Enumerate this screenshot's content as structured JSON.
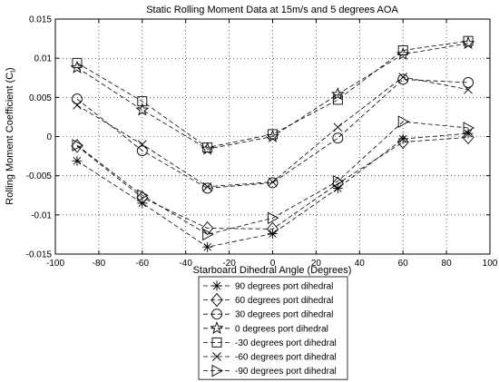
{
  "chart_data": {
    "type": "line",
    "title": "Static Rolling Moment Data at 15m/s and 5 degrees AOA",
    "xlabel": "Starboard Dihedral Angle (Degrees)",
    "ylabel": "Rolling Moment Coefficient (C",
    "ylabel_sub": "l",
    "ylabel_close": ")",
    "xlim": [
      -100,
      100
    ],
    "ylim": [
      -0.015,
      0.015
    ],
    "x_ticks": [
      -100,
      -80,
      -60,
      -40,
      -20,
      0,
      20,
      40,
      60,
      80,
      100
    ],
    "y_ticks": [
      -0.015,
      -0.01,
      -0.005,
      0,
      0.005,
      0.01,
      0.015
    ],
    "x_tick_labels": [
      "-100",
      "-80",
      "-60",
      "-40",
      "-20",
      "0",
      "20",
      "40",
      "60",
      "80",
      "100"
    ],
    "y_tick_labels": [
      "-0.015",
      "-0.01",
      "-0.005",
      "0",
      "0.005",
      "0.01",
      "0.015"
    ],
    "grid": true,
    "legend_position": "bottom-center",
    "x": [
      -90,
      -60,
      -30,
      0,
      30,
      60,
      90
    ],
    "series": [
      {
        "name": "90 degrees port dihedral",
        "marker": "asterisk",
        "values": [
          -0.0031,
          -0.0085,
          -0.0141,
          -0.0124,
          -0.0066,
          -0.0003,
          0.0004
        ]
      },
      {
        "name": "60 degrees port dihedral",
        "marker": "diamond",
        "values": [
          -0.0012,
          -0.0078,
          -0.0117,
          -0.0118,
          -0.006,
          -0.0007,
          -0.0001
        ]
      },
      {
        "name": "30 degrees port dihedral",
        "marker": "circle",
        "values": [
          0.0048,
          -0.0018,
          -0.0066,
          -0.0059,
          -0.0002,
          0.0073,
          0.0069
        ]
      },
      {
        "name": "0 degrees port dihedral",
        "marker": "star",
        "values": [
          0.0088,
          0.0034,
          -0.0016,
          0.0,
          0.0054,
          0.0105,
          0.0119
        ]
      },
      {
        "name": "-30 degrees port dihedral",
        "marker": "square",
        "values": [
          0.0094,
          0.0045,
          -0.0014,
          0.0003,
          0.0047,
          0.011,
          0.0122
        ]
      },
      {
        "name": "-60 degrees port dihedral",
        "marker": "x",
        "values": [
          0.004,
          -0.001,
          -0.0064,
          -0.0058,
          0.0012,
          0.0076,
          0.006
        ]
      },
      {
        "name": "-90 degrees port dihedral",
        "marker": "triangle-right",
        "values": [
          -0.0011,
          -0.0075,
          -0.0125,
          -0.0104,
          -0.0057,
          0.0019,
          0.0011
        ]
      }
    ]
  }
}
